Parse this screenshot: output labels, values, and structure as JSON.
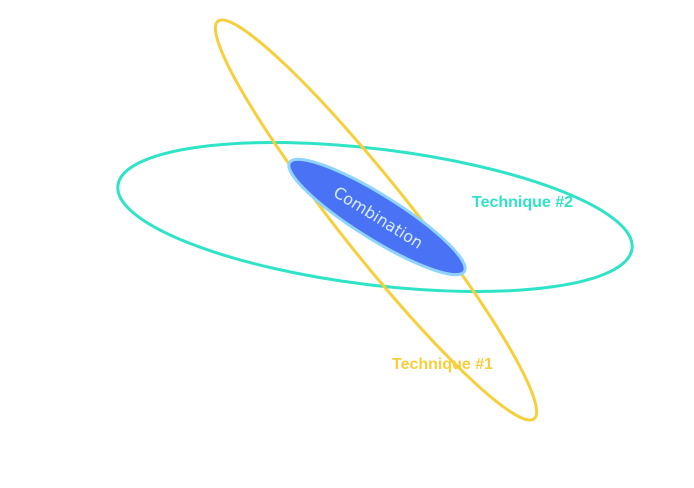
{
  "diagram": {
    "technique1": {
      "label": "Technique #1",
      "color": "#F7CF3B"
    },
    "technique2": {
      "label": "Technique #2",
      "color": "#2FE3C6"
    },
    "combination": {
      "label": "Combination",
      "fill": "#4A72F5",
      "stroke": "#8FD3FF",
      "text_color": "#D8EEFF"
    }
  }
}
